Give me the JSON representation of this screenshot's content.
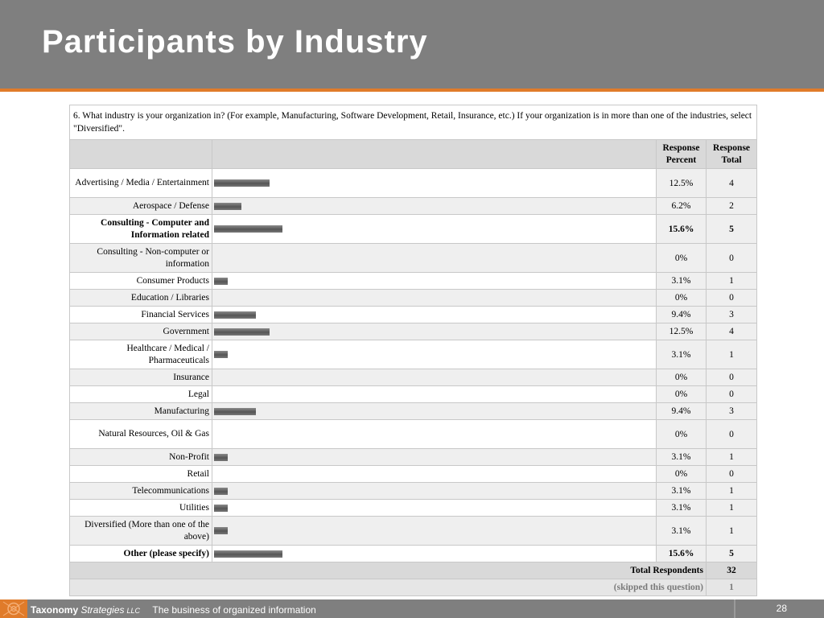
{
  "slide": {
    "title": "Participants by Industry"
  },
  "survey": {
    "question": "6. What industry is your organization in? (For example, Manufacturing, Software Development, Retail, Insurance, etc.) If your organization is in more than one of the industries, select \"Diversified\".",
    "col_percent": "Response Percent",
    "col_total": "Response Total",
    "rows": [
      {
        "label": "Advertising / Media / Entertainment",
        "percent": "12.5%",
        "total": "4",
        "share": 0.125,
        "bold": false
      },
      {
        "label": "Aerospace / Defense",
        "percent": "6.2%",
        "total": "2",
        "share": 0.062,
        "bold": false
      },
      {
        "label": "Consulting - Computer and Information related",
        "percent": "15.6%",
        "total": "5",
        "share": 0.156,
        "bold": true
      },
      {
        "label": "Consulting - Non-computer or information",
        "percent": "0%",
        "total": "0",
        "share": 0,
        "bold": false
      },
      {
        "label": "Consumer Products",
        "percent": "3.1%",
        "total": "1",
        "share": 0.031,
        "bold": false
      },
      {
        "label": "Education / Libraries",
        "percent": "0%",
        "total": "0",
        "share": 0,
        "bold": false
      },
      {
        "label": "Financial Services",
        "percent": "9.4%",
        "total": "3",
        "share": 0.094,
        "bold": false
      },
      {
        "label": "Government",
        "percent": "12.5%",
        "total": "4",
        "share": 0.125,
        "bold": false
      },
      {
        "label": "Healthcare / Medical / Pharmaceuticals",
        "percent": "3.1%",
        "total": "1",
        "share": 0.031,
        "bold": false
      },
      {
        "label": "Insurance",
        "percent": "0%",
        "total": "0",
        "share": 0,
        "bold": false
      },
      {
        "label": "Legal",
        "percent": "0%",
        "total": "0",
        "share": 0,
        "bold": false
      },
      {
        "label": "Manufacturing",
        "percent": "9.4%",
        "total": "3",
        "share": 0.094,
        "bold": false
      },
      {
        "label": "Natural Resources, Oil & Gas",
        "percent": "0%",
        "total": "0",
        "share": 0,
        "bold": false
      },
      {
        "label": "Non-Profit",
        "percent": "3.1%",
        "total": "1",
        "share": 0.031,
        "bold": false
      },
      {
        "label": "Retail",
        "percent": "0%",
        "total": "0",
        "share": 0,
        "bold": false
      },
      {
        "label": "Telecommunications",
        "percent": "3.1%",
        "total": "1",
        "share": 0.031,
        "bold": false
      },
      {
        "label": "Utilities",
        "percent": "3.1%",
        "total": "1",
        "share": 0.031,
        "bold": false
      },
      {
        "label": "Diversified (More than one of the above)",
        "percent": "3.1%",
        "total": "1",
        "share": 0.031,
        "bold": false
      },
      {
        "label": "Other (please specify)",
        "percent": "15.6%",
        "total": "5",
        "share": 0.156,
        "bold": true
      }
    ],
    "total_respondents_label": "Total Respondents",
    "total_respondents": "32",
    "skipped_label": "(skipped this question)",
    "skipped": "1"
  },
  "footer": {
    "brand_bold": "Taxonomy",
    "brand_italic": "Strategies",
    "brand_llc": "LLC",
    "tagline": "The business of organized information",
    "page_number": "28"
  },
  "colors": {
    "header_bg": "#7f7f7f",
    "accent_orange": "#e07b2a",
    "bar": "#666666"
  }
}
